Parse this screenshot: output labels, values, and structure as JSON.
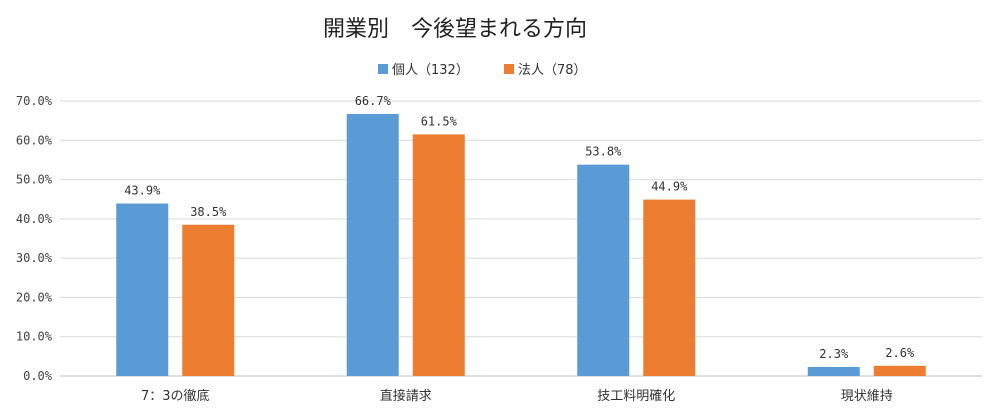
{
  "chart_data": {
    "type": "bar",
    "title": "開業別　今後望まれる方向",
    "categories": [
      "7：3の徹底",
      "直接請求",
      "技工料明確化",
      "現状維持"
    ],
    "series": [
      {
        "name": "個人（132）",
        "color": "#5b9bd5",
        "values": [
          43.9,
          66.7,
          53.8,
          2.3
        ],
        "labels": [
          "43.9%",
          "66.7%",
          "53.8%",
          "2.3%"
        ]
      },
      {
        "name": "法人（78）",
        "color": "#ed7d31",
        "values": [
          38.5,
          61.5,
          44.9,
          2.6
        ],
        "labels": [
          "38.5%",
          "61.5%",
          "44.9%",
          "2.6%"
        ]
      }
    ],
    "ylim": [
      0,
      70
    ],
    "yticks": [
      0,
      10,
      20,
      30,
      40,
      50,
      60,
      70
    ],
    "ytick_labels": [
      "0.0%",
      "10.0%",
      "20.0%",
      "30.0%",
      "40.0%",
      "50.0%",
      "60.0%",
      "70.0%"
    ],
    "grid": true,
    "legend_position": "top-center"
  }
}
